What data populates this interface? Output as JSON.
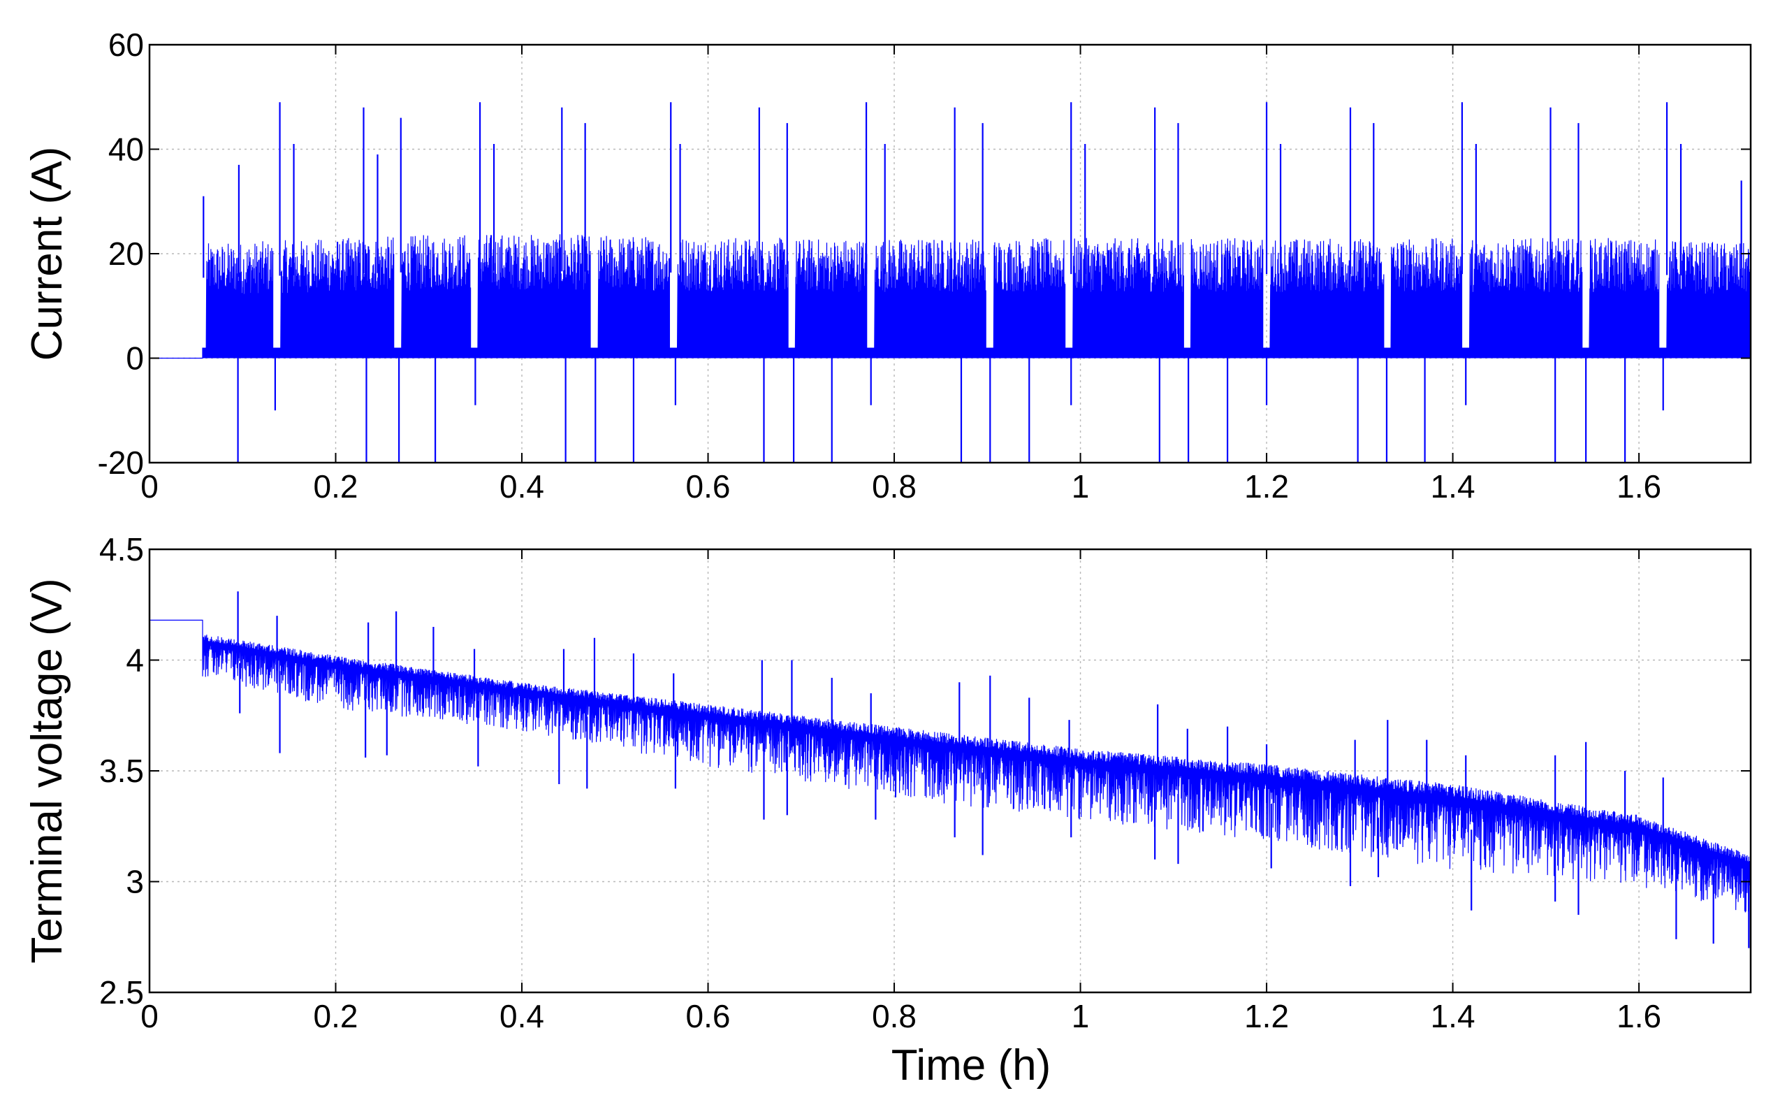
{
  "chart_data": [
    {
      "type": "line",
      "title": "",
      "xlabel": "",
      "ylabel": "Current (A)",
      "xlim": [
        0,
        1.72
      ],
      "ylim": [
        -20,
        60
      ],
      "grid": true,
      "x_ticks": [
        0,
        0.2,
        0.4,
        0.6,
        0.8,
        1,
        1.2,
        1.4,
        1.6
      ],
      "x_tick_labels": [
        "0",
        "0.2",
        "0.4",
        "0.6",
        "0.8",
        "1",
        "1.2",
        "1.4",
        "1.6"
      ],
      "y_ticks": [
        -20,
        0,
        20,
        40,
        60
      ],
      "y_tick_labels": [
        "-20",
        "0",
        "20",
        "40",
        "60"
      ],
      "line_color": "#0000ff",
      "series": [
        {
          "idle_value": 0,
          "idle_until": 0.057,
          "cycle_starts": [
            0.057,
            0.137,
            0.267,
            0.349,
            0.478,
            0.563,
            0.69,
            0.775,
            0.903,
            0.988,
            1.115,
            1.2,
            1.33,
            1.414,
            1.543,
            1.626
          ],
          "baseline_envelope": [
            [
              0.06,
              22
            ],
            [
              0.35,
              24
            ],
            [
              0.7,
              23
            ],
            [
              1.0,
              23
            ],
            [
              1.3,
              23
            ],
            [
              1.6,
              23
            ],
            [
              1.72,
              22
            ]
          ],
          "peaks": [
            {
              "x": 0.058,
              "y": 31
            },
            {
              "x": 0.096,
              "y": 37
            },
            {
              "x": 0.14,
              "y": 49
            },
            {
              "x": 0.155,
              "y": 41
            },
            {
              "x": 0.23,
              "y": 48
            },
            {
              "x": 0.245,
              "y": 39
            },
            {
              "x": 0.27,
              "y": 46
            },
            {
              "x": 0.355,
              "y": 49
            },
            {
              "x": 0.37,
              "y": 41
            },
            {
              "x": 0.443,
              "y": 48
            },
            {
              "x": 0.468,
              "y": 45
            },
            {
              "x": 0.56,
              "y": 49
            },
            {
              "x": 0.57,
              "y": 41
            },
            {
              "x": 0.655,
              "y": 48
            },
            {
              "x": 0.685,
              "y": 45
            },
            {
              "x": 0.77,
              "y": 49
            },
            {
              "x": 0.79,
              "y": 41
            },
            {
              "x": 0.865,
              "y": 48
            },
            {
              "x": 0.895,
              "y": 45
            },
            {
              "x": 0.99,
              "y": 49
            },
            {
              "x": 1.005,
              "y": 41
            },
            {
              "x": 1.08,
              "y": 48
            },
            {
              "x": 1.105,
              "y": 45
            },
            {
              "x": 1.2,
              "y": 49
            },
            {
              "x": 1.215,
              "y": 41
            },
            {
              "x": 1.29,
              "y": 48
            },
            {
              "x": 1.315,
              "y": 45
            },
            {
              "x": 1.41,
              "y": 49
            },
            {
              "x": 1.425,
              "y": 41
            },
            {
              "x": 1.505,
              "y": 48
            },
            {
              "x": 1.535,
              "y": 45
            },
            {
              "x": 1.63,
              "y": 49
            },
            {
              "x": 1.645,
              "y": 41
            },
            {
              "x": 1.71,
              "y": 34
            }
          ],
          "dips": [
            {
              "x": 0.095,
              "y": -20
            },
            {
              "x": 0.135,
              "y": -10
            },
            {
              "x": 0.233,
              "y": -20
            },
            {
              "x": 0.268,
              "y": -20
            },
            {
              "x": 0.307,
              "y": -20
            },
            {
              "x": 0.35,
              "y": -9
            },
            {
              "x": 0.447,
              "y": -20
            },
            {
              "x": 0.479,
              "y": -20
            },
            {
              "x": 0.52,
              "y": -20
            },
            {
              "x": 0.565,
              "y": -9
            },
            {
              "x": 0.66,
              "y": -20
            },
            {
              "x": 0.692,
              "y": -20
            },
            {
              "x": 0.733,
              "y": -20
            },
            {
              "x": 0.775,
              "y": -9
            },
            {
              "x": 0.872,
              "y": -20
            },
            {
              "x": 0.903,
              "y": -20
            },
            {
              "x": 0.945,
              "y": -20
            },
            {
              "x": 0.99,
              "y": -9
            },
            {
              "x": 1.085,
              "y": -20
            },
            {
              "x": 1.116,
              "y": -20
            },
            {
              "x": 1.158,
              "y": -20
            },
            {
              "x": 1.2,
              "y": -9
            },
            {
              "x": 1.298,
              "y": -20
            },
            {
              "x": 1.329,
              "y": -20
            },
            {
              "x": 1.37,
              "y": -20
            },
            {
              "x": 1.414,
              "y": -9
            },
            {
              "x": 1.51,
              "y": -20
            },
            {
              "x": 1.543,
              "y": -20
            },
            {
              "x": 1.585,
              "y": -20
            },
            {
              "x": 1.626,
              "y": -10
            }
          ]
        }
      ]
    },
    {
      "type": "line",
      "title": "",
      "xlabel": "Time (h)",
      "ylabel": "Terminal voltage (V)",
      "xlim": [
        0,
        1.72
      ],
      "ylim": [
        2.5,
        4.5
      ],
      "grid": true,
      "x_ticks": [
        0,
        0.2,
        0.4,
        0.6,
        0.8,
        1,
        1.2,
        1.4,
        1.6
      ],
      "x_tick_labels": [
        "0",
        "0.2",
        "0.4",
        "0.6",
        "0.8",
        "1",
        "1.2",
        "1.4",
        "1.6"
      ],
      "y_ticks": [
        2.5,
        3,
        3.5,
        4,
        4.5
      ],
      "y_tick_labels": [
        "2.5",
        "3",
        "3.5",
        "4",
        "4.5"
      ],
      "line_color": "#0000ff",
      "series": [
        {
          "idle_value": 4.18,
          "idle_until": 0.057,
          "upper_envelope": [
            [
              0.057,
              4.12
            ],
            [
              0.2,
              4.02
            ],
            [
              0.4,
              3.9
            ],
            [
              0.6,
              3.8
            ],
            [
              0.8,
              3.7
            ],
            [
              1.0,
              3.6
            ],
            [
              1.2,
              3.53
            ],
            [
              1.4,
              3.44
            ],
            [
              1.6,
              3.3
            ],
            [
              1.72,
              3.12
            ]
          ],
          "lower_envelope": [
            [
              0.057,
              3.92
            ],
            [
              0.2,
              3.78
            ],
            [
              0.4,
              3.68
            ],
            [
              0.6,
              3.52
            ],
            [
              0.8,
              3.38
            ],
            [
              1.0,
              3.28
            ],
            [
              1.2,
              3.18
            ],
            [
              1.4,
              3.05
            ],
            [
              1.6,
              2.98
            ],
            [
              1.72,
              2.85
            ]
          ],
          "spikes_up": [
            {
              "x": 0.095,
              "y": 4.31
            },
            {
              "x": 0.137,
              "y": 4.2
            },
            {
              "x": 0.235,
              "y": 4.17
            },
            {
              "x": 0.265,
              "y": 4.22
            },
            {
              "x": 0.305,
              "y": 4.15
            },
            {
              "x": 0.349,
              "y": 4.05
            },
            {
              "x": 0.445,
              "y": 4.05
            },
            {
              "x": 0.478,
              "y": 4.1
            },
            {
              "x": 0.52,
              "y": 4.03
            },
            {
              "x": 0.563,
              "y": 3.94
            },
            {
              "x": 0.658,
              "y": 4.0
            },
            {
              "x": 0.69,
              "y": 4.0
            },
            {
              "x": 0.733,
              "y": 3.92
            },
            {
              "x": 0.775,
              "y": 3.85
            },
            {
              "x": 0.87,
              "y": 3.9
            },
            {
              "x": 0.903,
              "y": 3.93
            },
            {
              "x": 0.945,
              "y": 3.83
            },
            {
              "x": 0.988,
              "y": 3.73
            },
            {
              "x": 1.083,
              "y": 3.8
            },
            {
              "x": 1.115,
              "y": 3.69
            },
            {
              "x": 1.158,
              "y": 3.7
            },
            {
              "x": 1.2,
              "y": 3.62
            },
            {
              "x": 1.295,
              "y": 3.64
            },
            {
              "x": 1.33,
              "y": 3.73
            },
            {
              "x": 1.372,
              "y": 3.64
            },
            {
              "x": 1.414,
              "y": 3.57
            },
            {
              "x": 1.51,
              "y": 3.57
            },
            {
              "x": 1.543,
              "y": 3.63
            },
            {
              "x": 1.585,
              "y": 3.5
            },
            {
              "x": 1.626,
              "y": 3.47
            }
          ],
          "spikes_down": [
            {
              "x": 0.097,
              "y": 3.76
            },
            {
              "x": 0.14,
              "y": 3.58
            },
            {
              "x": 0.232,
              "y": 3.56
            },
            {
              "x": 0.255,
              "y": 3.57
            },
            {
              "x": 0.353,
              "y": 3.52
            },
            {
              "x": 0.44,
              "y": 3.44
            },
            {
              "x": 0.47,
              "y": 3.42
            },
            {
              "x": 0.565,
              "y": 3.42
            },
            {
              "x": 0.66,
              "y": 3.28
            },
            {
              "x": 0.685,
              "y": 3.3
            },
            {
              "x": 0.78,
              "y": 3.28
            },
            {
              "x": 0.865,
              "y": 3.2
            },
            {
              "x": 0.895,
              "y": 3.12
            },
            {
              "x": 0.99,
              "y": 3.2
            },
            {
              "x": 1.08,
              "y": 3.1
            },
            {
              "x": 1.105,
              "y": 3.08
            },
            {
              "x": 1.205,
              "y": 3.06
            },
            {
              "x": 1.29,
              "y": 2.98
            },
            {
              "x": 1.32,
              "y": 3.02
            },
            {
              "x": 1.42,
              "y": 2.87
            },
            {
              "x": 1.51,
              "y": 2.91
            },
            {
              "x": 1.535,
              "y": 2.85
            },
            {
              "x": 1.64,
              "y": 2.74
            },
            {
              "x": 1.68,
              "y": 2.72
            },
            {
              "x": 1.718,
              "y": 2.7
            }
          ]
        }
      ]
    }
  ]
}
